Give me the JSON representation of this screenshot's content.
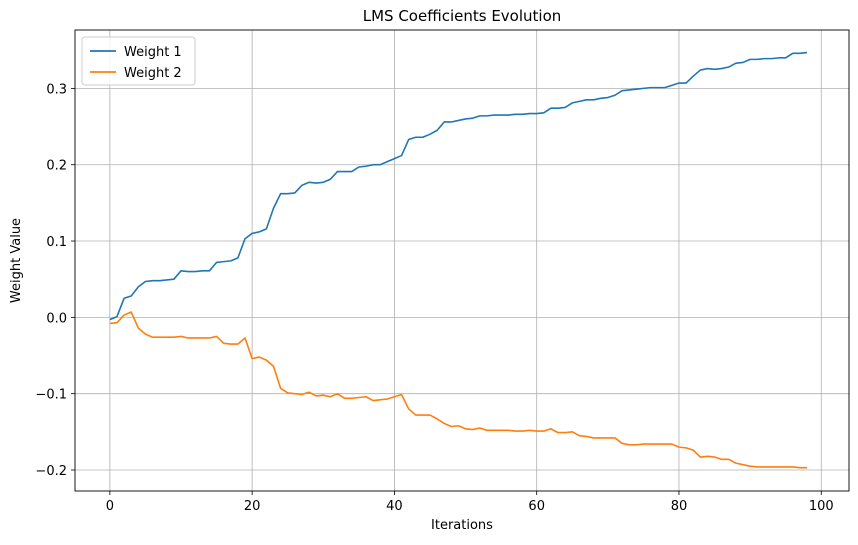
{
  "chart_data": {
    "type": "line",
    "title": "LMS Coefficients Evolution",
    "xlabel": "Iterations",
    "ylabel": "Weight Value",
    "xlim": [
      -4.9,
      103.9
    ],
    "ylim": [
      -0.2275,
      0.3765
    ],
    "xticks": [
      0,
      20,
      40,
      60,
      80,
      100
    ],
    "yticks": [
      -0.2,
      -0.1,
      0.0,
      0.1,
      0.2,
      0.3
    ],
    "ytick_labels": [
      "−0.2",
      "−0.1",
      "0.0",
      "0.1",
      "0.2",
      "0.3"
    ],
    "grid": true,
    "legend": "top-left",
    "x": [
      0,
      1,
      2,
      3,
      4,
      5,
      6,
      7,
      8,
      9,
      10,
      11,
      12,
      13,
      14,
      15,
      16,
      17,
      18,
      19,
      20,
      21,
      22,
      23,
      24,
      25,
      26,
      27,
      28,
      29,
      30,
      31,
      32,
      33,
      34,
      35,
      36,
      37,
      38,
      39,
      40,
      41,
      42,
      43,
      44,
      45,
      46,
      47,
      48,
      49,
      50,
      51,
      52,
      53,
      54,
      55,
      56,
      57,
      58,
      59,
      60,
      61,
      62,
      63,
      64,
      65,
      66,
      67,
      68,
      69,
      70,
      71,
      72,
      73,
      74,
      75,
      76,
      77,
      78,
      79,
      80,
      81,
      82,
      83,
      84,
      85,
      86,
      87,
      88,
      89,
      90,
      91,
      92,
      93,
      94,
      95,
      96,
      97,
      98
    ],
    "series": [
      {
        "name": "Weight 1",
        "color": "#1f77b4",
        "values": [
          -0.003,
          0.001,
          0.025,
          0.028,
          0.04,
          0.047,
          0.048,
          0.048,
          0.049,
          0.05,
          0.061,
          0.06,
          0.06,
          0.061,
          0.061,
          0.072,
          0.073,
          0.074,
          0.078,
          0.103,
          0.11,
          0.112,
          0.116,
          0.143,
          0.162,
          0.162,
          0.163,
          0.173,
          0.177,
          0.176,
          0.177,
          0.181,
          0.191,
          0.191,
          0.191,
          0.197,
          0.198,
          0.2,
          0.2,
          0.204,
          0.208,
          0.212,
          0.233,
          0.236,
          0.236,
          0.24,
          0.245,
          0.256,
          0.256,
          0.258,
          0.26,
          0.261,
          0.264,
          0.264,
          0.265,
          0.265,
          0.265,
          0.266,
          0.266,
          0.267,
          0.267,
          0.268,
          0.274,
          0.274,
          0.275,
          0.281,
          0.283,
          0.285,
          0.285,
          0.287,
          0.288,
          0.291,
          0.297,
          0.298,
          0.299,
          0.3,
          0.301,
          0.301,
          0.301,
          0.304,
          0.307,
          0.307,
          0.316,
          0.324,
          0.326,
          0.325,
          0.326,
          0.328,
          0.333,
          0.334,
          0.338,
          0.338,
          0.339,
          0.339,
          0.34,
          0.34,
          0.346,
          0.346,
          0.347
        ]
      },
      {
        "name": "Weight 2",
        "color": "#ff7f0e",
        "values": [
          -0.008,
          -0.007,
          0.003,
          0.007,
          -0.014,
          -0.022,
          -0.026,
          -0.026,
          -0.026,
          -0.026,
          -0.025,
          -0.027,
          -0.027,
          -0.027,
          -0.027,
          -0.025,
          -0.034,
          -0.035,
          -0.035,
          -0.027,
          -0.054,
          -0.052,
          -0.056,
          -0.064,
          -0.093,
          -0.099,
          -0.1,
          -0.101,
          -0.098,
          -0.103,
          -0.102,
          -0.104,
          -0.1,
          -0.106,
          -0.106,
          -0.105,
          -0.104,
          -0.109,
          -0.108,
          -0.107,
          -0.104,
          -0.101,
          -0.12,
          -0.128,
          -0.128,
          -0.128,
          -0.133,
          -0.139,
          -0.143,
          -0.142,
          -0.146,
          -0.147,
          -0.145,
          -0.148,
          -0.148,
          -0.148,
          -0.148,
          -0.149,
          -0.149,
          -0.148,
          -0.149,
          -0.149,
          -0.146,
          -0.151,
          -0.151,
          -0.15,
          -0.155,
          -0.156,
          -0.158,
          -0.158,
          -0.158,
          -0.158,
          -0.165,
          -0.167,
          -0.167,
          -0.166,
          -0.166,
          -0.166,
          -0.166,
          -0.166,
          -0.17,
          -0.171,
          -0.174,
          -0.183,
          -0.182,
          -0.183,
          -0.186,
          -0.186,
          -0.191,
          -0.193,
          -0.195,
          -0.196,
          -0.196,
          -0.196,
          -0.196,
          -0.196,
          -0.196,
          -0.197,
          -0.197
        ]
      }
    ]
  }
}
